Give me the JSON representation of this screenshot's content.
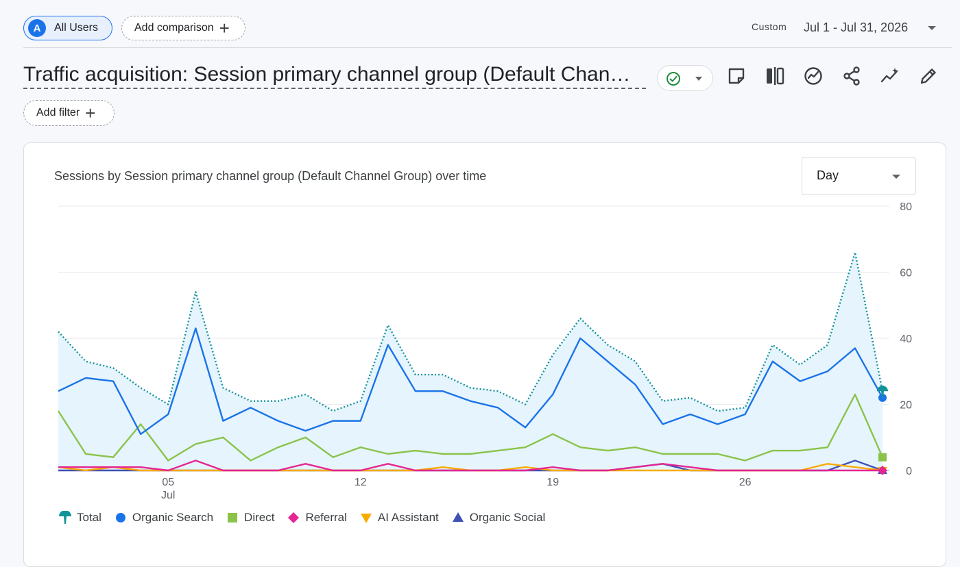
{
  "segment": {
    "avatar": "A",
    "label": "All Users"
  },
  "comparison": {
    "label": "Add comparison",
    "icon": "plus-icon"
  },
  "date_range": {
    "kind": "Custom",
    "range": "Jul 1 - Jul 31, 2026"
  },
  "page": {
    "title": "Traffic acquisition: Session primary channel group (Default Chan…"
  },
  "toolbar": {
    "status_icon": "check-circle-icon",
    "icons": [
      "note-icon",
      "compare-icon",
      "insights-icon",
      "share-icon",
      "trend-icon",
      "edit-icon"
    ]
  },
  "filter": {
    "label": "Add filter",
    "icon": "plus-icon"
  },
  "card": {
    "title": "Sessions by Session primary channel group (Default Channel Group) over time"
  },
  "granularity": {
    "value": "Day"
  },
  "colors": {
    "total": "#12939a",
    "organic_search": "#1a73e8",
    "direct": "#8bc34a",
    "referral": "#e52592",
    "ai_assistant": "#f9ab00",
    "organic_social": "#3f51b5",
    "accent": "#1a73e8"
  },
  "chart_data": {
    "type": "line",
    "x": [
      1,
      2,
      3,
      4,
      5,
      6,
      7,
      8,
      9,
      10,
      11,
      12,
      13,
      14,
      15,
      16,
      17,
      18,
      19,
      20,
      21,
      22,
      23,
      24,
      25,
      26,
      27,
      28,
      29,
      30,
      31
    ],
    "x_tick_labels": [
      {
        "day": 5,
        "label": "05",
        "sublabel": "Jul"
      },
      {
        "day": 12,
        "label": "12",
        "sublabel": ""
      },
      {
        "day": 19,
        "label": "19",
        "sublabel": ""
      },
      {
        "day": 26,
        "label": "26",
        "sublabel": ""
      }
    ],
    "y_ticks": [
      0,
      20,
      40,
      60,
      80
    ],
    "ylim": [
      0,
      80
    ],
    "grid": true,
    "legend_position": "bottom-left",
    "series": [
      {
        "name": "Total",
        "key": "total",
        "marker": "pin",
        "style": "dotted-area",
        "values": [
          42,
          33,
          31,
          25,
          20,
          54,
          25,
          21,
          21,
          23,
          18,
          21,
          44,
          29,
          29,
          25,
          24,
          20,
          35,
          46,
          38,
          33,
          21,
          22,
          18,
          19,
          38,
          32,
          38,
          66,
          24
        ]
      },
      {
        "name": "Organic Search",
        "key": "organic_search",
        "marker": "circle",
        "style": "solid",
        "values": [
          24,
          28,
          27,
          11,
          17,
          43,
          15,
          19,
          15,
          12,
          15,
          15,
          38,
          24,
          24,
          21,
          19,
          13,
          23,
          40,
          33,
          26,
          14,
          17,
          14,
          17,
          33,
          27,
          30,
          37,
          22
        ]
      },
      {
        "name": "Direct",
        "key": "direct",
        "marker": "square",
        "style": "solid",
        "values": [
          18,
          5,
          4,
          14,
          3,
          8,
          10,
          3,
          7,
          10,
          4,
          7,
          5,
          6,
          5,
          5,
          6,
          7,
          11,
          7,
          6,
          7,
          5,
          5,
          5,
          3,
          6,
          6,
          7,
          23,
          4
        ]
      },
      {
        "name": "Referral",
        "key": "referral",
        "marker": "diamond",
        "style": "solid",
        "values": [
          1,
          1,
          1,
          1,
          0,
          3,
          0,
          0,
          0,
          2,
          0,
          0,
          2,
          0,
          0,
          0,
          0,
          0,
          1,
          0,
          0,
          1,
          2,
          1,
          0,
          0,
          0,
          0,
          0,
          0,
          0
        ]
      },
      {
        "name": "AI Assistant",
        "key": "ai_assistant",
        "marker": "triangle-down",
        "style": "solid",
        "values": [
          1,
          0,
          1,
          0,
          0,
          0,
          0,
          0,
          0,
          0,
          0,
          0,
          0,
          0,
          1,
          0,
          0,
          1,
          0,
          0,
          0,
          0,
          0,
          0,
          0,
          0,
          0,
          0,
          2,
          1,
          0
        ]
      },
      {
        "name": "Organic Social",
        "key": "organic_social",
        "marker": "triangle-up",
        "style": "solid",
        "values": [
          0,
          0,
          0,
          0,
          0,
          0,
          0,
          0,
          0,
          0,
          0,
          0,
          0,
          0,
          0,
          0,
          0,
          0,
          0,
          0,
          0,
          1,
          2,
          0,
          0,
          0,
          0,
          0,
          0,
          3,
          0
        ]
      }
    ]
  }
}
